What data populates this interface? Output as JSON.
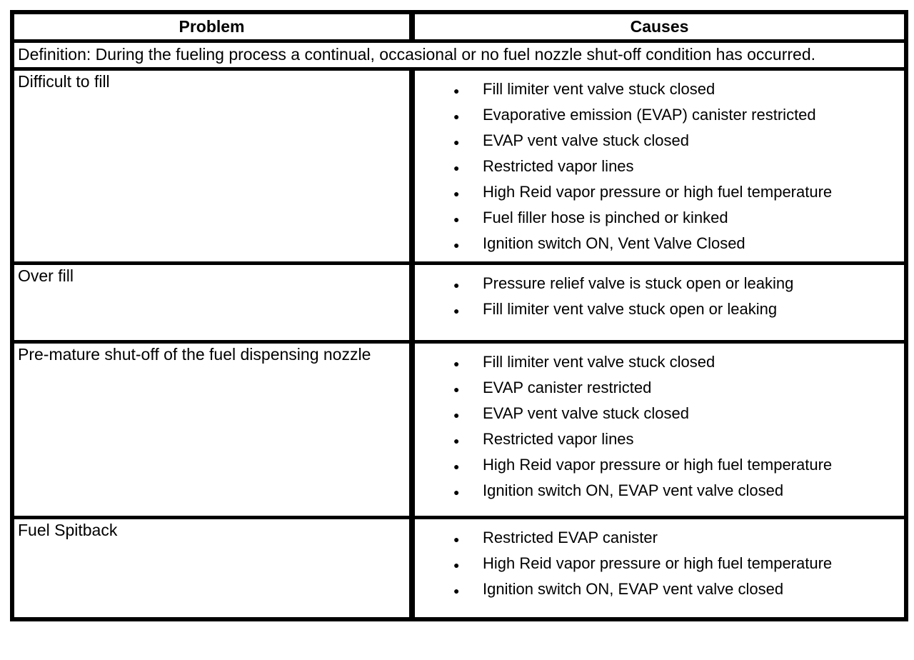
{
  "table": {
    "headers": {
      "problem": "Problem",
      "causes": "Causes"
    },
    "definition": "Definition: During the fueling process a continual, occasional or no fuel nozzle shut-off condition has occurred.",
    "bullet_glyph": "●",
    "colors": {
      "border": "#000000",
      "text": "#000000",
      "background": "#ffffff"
    },
    "rows": [
      {
        "problem": "Difficult to fill",
        "causes": [
          "Fill limiter vent valve stuck closed",
          "Evaporative emission (EVAP) canister restricted",
          "EVAP vent valve stuck closed",
          "Restricted vapor lines",
          "High Reid vapor pressure or high fuel temperature",
          "Fuel filler hose is pinched or kinked",
          "Ignition switch ON, Vent Valve Closed"
        ]
      },
      {
        "problem": "Over fill",
        "causes": [
          "Pressure relief valve is stuck open or leaking",
          "Fill limiter vent valve stuck open or leaking"
        ]
      },
      {
        "problem": "Pre-mature shut-off of the fuel dispensing nozzle",
        "causes": [
          "Fill limiter vent valve stuck closed",
          "EVAP canister restricted",
          "EVAP vent valve stuck closed",
          "Restricted vapor lines",
          "High Reid vapor pressure or high fuel temperature",
          "Ignition switch ON, EVAP vent valve closed"
        ]
      },
      {
        "problem": "Fuel Spitback",
        "causes": [
          "Restricted EVAP canister",
          "High Reid vapor pressure or high fuel temperature",
          "Ignition switch ON, EVAP vent valve closed"
        ]
      }
    ]
  }
}
